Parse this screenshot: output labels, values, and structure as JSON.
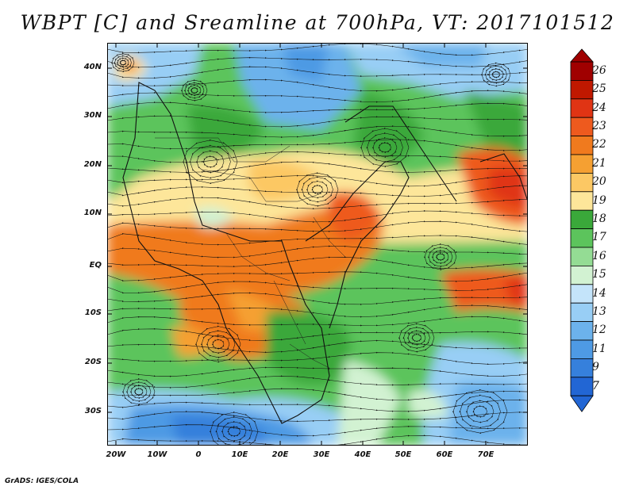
{
  "title": "WBPT [C] and Sreamline at 700hPa, VT: 2017101512",
  "credit": "GrADS: IGES/COLA",
  "map": {
    "lat_labels": [
      "40N",
      "30N",
      "20N",
      "10N",
      "EQ",
      "10S",
      "20S",
      "30S"
    ],
    "lon_labels": [
      "20W",
      "10W",
      "0",
      "10E",
      "20E",
      "30E",
      "40E",
      "50E",
      "60E",
      "70E"
    ],
    "lon_range": [
      -22,
      80
    ],
    "lat_range": [
      -36,
      45
    ],
    "field": "Wet-bulb potential temperature (C) with 700hPa streamlines"
  },
  "colorbar": {
    "labels": [
      "26",
      "25",
      "24",
      "23",
      "22",
      "21",
      "20",
      "19",
      "18",
      "17",
      "16",
      "15",
      "14",
      "13",
      "12",
      "11",
      "9",
      "7"
    ],
    "colors": [
      "#a00000",
      "#c01800",
      "#e03414",
      "#ee5a1e",
      "#f07a1e",
      "#f5a032",
      "#fcc864",
      "#fde69a",
      "#3aa83a",
      "#5cc45c",
      "#94dc94",
      "#d2f2d2",
      "#c4e4fa",
      "#98cef5",
      "#6cb2ec",
      "#4e9ae4",
      "#3680dc",
      "#2266d4"
    ]
  }
}
